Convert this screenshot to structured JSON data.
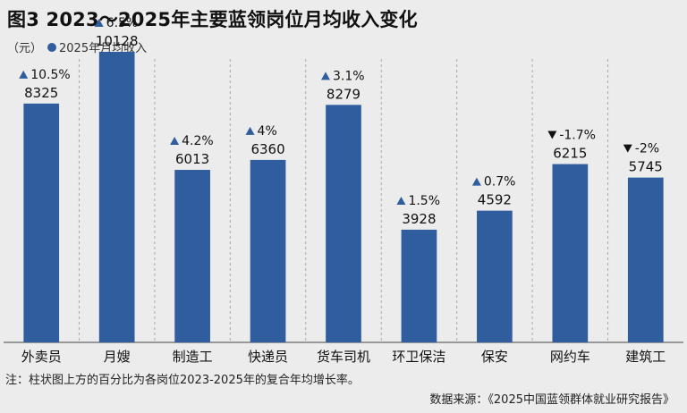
{
  "colors": {
    "bar": "#2f5d9e",
    "background": "#ececec",
    "up_arrow": "#2f5d9e",
    "down_arrow": "#111111"
  },
  "header": {
    "title": "图3 2023～2025年主要蓝领岗位月均收入变化"
  },
  "legend": {
    "unit": "（元）",
    "series_label": "2025年月均收入"
  },
  "chart_data": {
    "type": "bar",
    "title": "图3 2023～2025年主要蓝领岗位月均收入变化",
    "ylabel": "（元）",
    "ylim": [
      0,
      11000
    ],
    "grid": "vertical dashed separators",
    "legend_position": "top-left",
    "categories": [
      "外卖员",
      "月嫂",
      "制造工",
      "快递员",
      "货车司机",
      "环卫保洁",
      "保安",
      "网约车",
      "建筑工"
    ],
    "series": [
      {
        "name": "2025年月均收入",
        "values": [
          8325,
          10128,
          6013,
          6360,
          8279,
          3928,
          4592,
          6215,
          5745
        ]
      }
    ],
    "growth": [
      {
        "direction": "up",
        "text": "10.5%"
      },
      {
        "direction": "up",
        "text": "6.5%"
      },
      {
        "direction": "up",
        "text": "4.2%"
      },
      {
        "direction": "up",
        "text": "4%"
      },
      {
        "direction": "up",
        "text": "3.1%"
      },
      {
        "direction": "up",
        "text": "1.5%"
      },
      {
        "direction": "up",
        "text": "0.7%"
      },
      {
        "direction": "down",
        "text": "-1.7%"
      },
      {
        "direction": "down",
        "text": "-2%"
      }
    ]
  },
  "footer": {
    "note": "注：柱状图上方的百分比为各岗位2023-2025年的复合年均增长率。",
    "source": "数据来源：《2025中国蓝领群体就业研究报告》"
  }
}
